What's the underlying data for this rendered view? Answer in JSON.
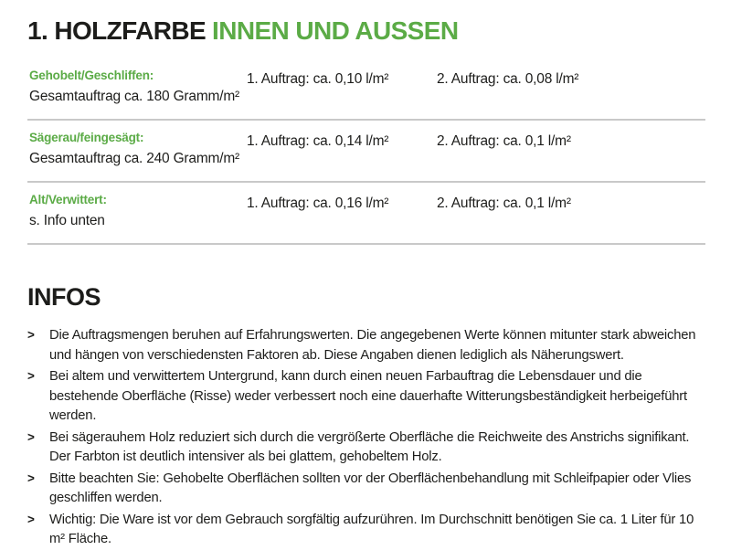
{
  "header": {
    "title_black": "1. HOLZFARBE",
    "title_green": "INNEN UND AUSSEN"
  },
  "table": {
    "rows": [
      {
        "label": "Gehobelt/Geschliffen:",
        "sub": "Gesamtauftrag ca. 180 Gramm/m²",
        "coat1": "1. Auftrag: ca. 0,10 l/m²",
        "coat2": "2. Auftrag: ca. 0,08 l/m²"
      },
      {
        "label": "Sägerau/feingesägt:",
        "sub": "Gesamtauftrag ca. 240 Gramm/m²",
        "coat1": "1. Auftrag: ca. 0,14 l/m²",
        "coat2": "2. Auftrag: ca. 0,1 l/m²"
      },
      {
        "label": "Alt/Verwittert:",
        "sub": "s. Info unten",
        "coat1": "1. Auftrag: ca. 0,16 l/m²",
        "coat2": "2. Auftrag: ca. 0,1 l/m²"
      }
    ]
  },
  "infos": {
    "heading": "INFOS",
    "bullet_glyph": ">",
    "items": [
      "Die Auftragsmengen beruhen auf Erfahrungswerten. Die angegebenen Werte können mitunter stark abweichen und hängen von verschiedensten Faktoren ab. Diese Angaben dienen lediglich als Näherungswert.",
      "Bei altem und verwittertem Untergrund, kann durch einen neuen Farbauftrag die Lebensdauer und die bestehende Oberfläche (Risse) weder verbessert noch eine dauerhafte Witterungsbeständigkeit herbeigeführt werden.",
      "Bei sägerauhem Holz reduziert sich durch die vergrößerte Oberfläche die Reichweite des Anstrichs signifikant. Der Farbton ist deutlich intensiver als bei glattem, gehobeltem Holz.",
      "Bitte beachten Sie: Gehobelte Oberflächen sollten vor der Oberflächenbehandlung mit Schleifpapier oder Vlies geschliffen werden.",
      "Wichtig: Die Ware ist vor dem Gebrauch sorgfältig aufzurühren. Im Durchschnitt benötigen Sie ca. 1 Liter für 10 m² Fläche."
    ]
  },
  "colors": {
    "accent_green": "#5BAB46",
    "text_black": "#1D1D1B",
    "divider_gray": "#C9C9C9"
  }
}
